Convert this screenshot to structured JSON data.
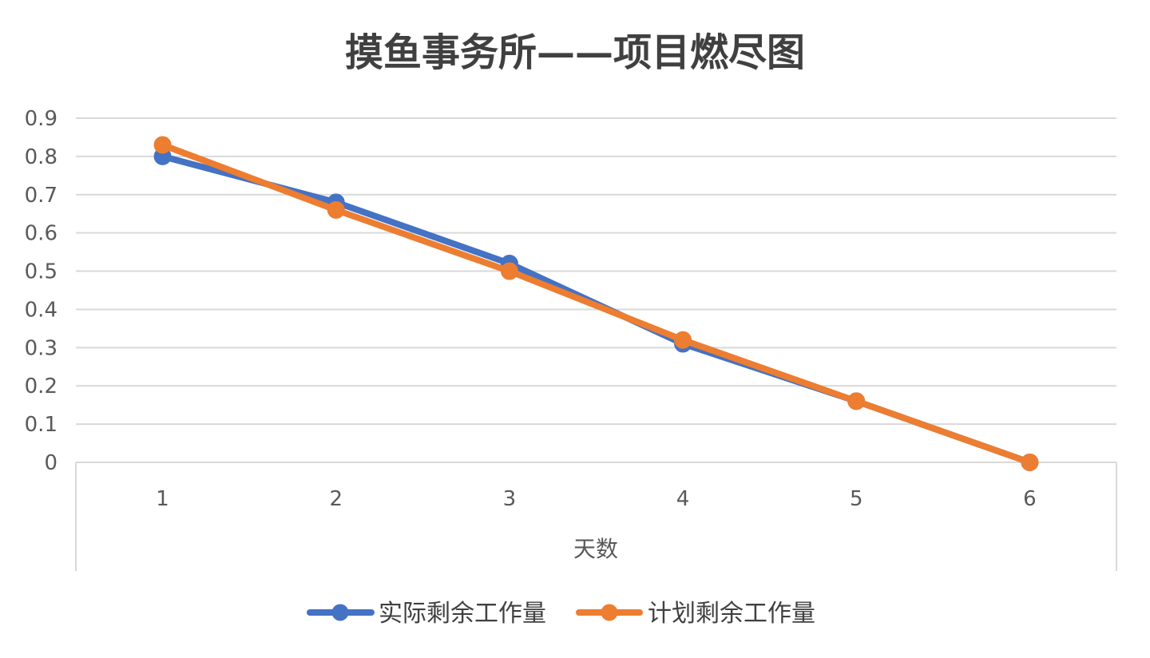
{
  "chart_data": {
    "type": "line",
    "title": "摸鱼事务所——项目燃尽图",
    "xlabel": "天数",
    "ylabel": "",
    "x": [
      1,
      2,
      3,
      4,
      5,
      6
    ],
    "x_tick_labels": [
      "1",
      "2",
      "3",
      "4",
      "5",
      "6"
    ],
    "ylim": [
      0,
      0.9
    ],
    "y_ticks": [
      0,
      0.1,
      0.2,
      0.3,
      0.4,
      0.5,
      0.6,
      0.7,
      0.8,
      0.9
    ],
    "y_tick_labels": [
      "0",
      "0.1",
      "0.2",
      "0.3",
      "0.4",
      "0.5",
      "0.6",
      "0.7",
      "0.8",
      "0.9"
    ],
    "grid": true,
    "legend_position": "bottom",
    "series": [
      {
        "name": "实际剩余工作量",
        "color": "#4472C4",
        "values": [
          0.8,
          0.68,
          0.52,
          0.31,
          0.16,
          0.0
        ]
      },
      {
        "name": "计划剩余工作量",
        "color": "#ED7D31",
        "values": [
          0.83,
          0.66,
          0.5,
          0.32,
          0.16,
          0.0
        ]
      }
    ]
  }
}
